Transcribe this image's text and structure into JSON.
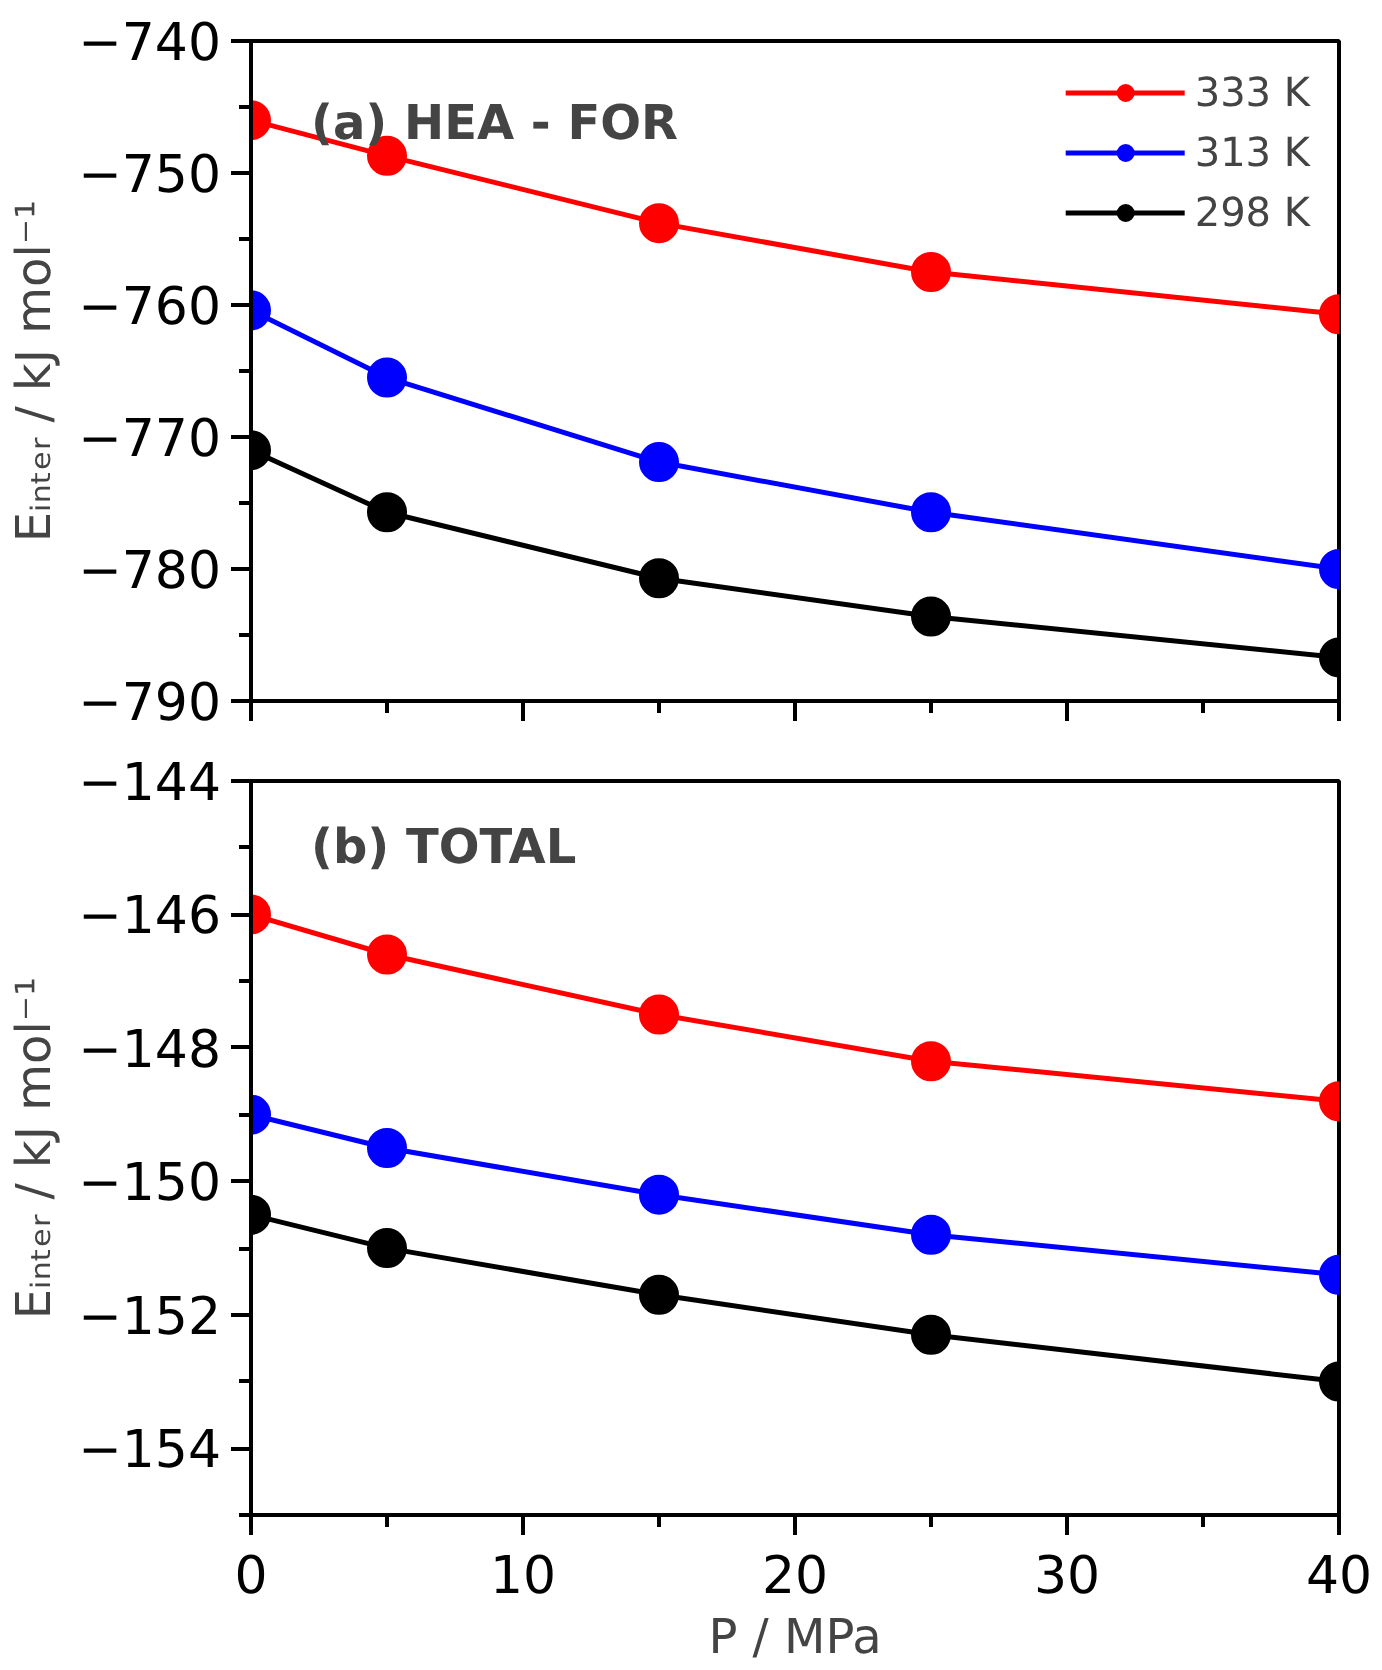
{
  "chart_data": [
    {
      "type": "line",
      "title": "(a) HEA - FOR",
      "ylabel": "Eᵢₙₜₑᵣ / kJ mol⁻¹",
      "x": [
        0,
        5,
        15,
        25,
        40
      ],
      "series": [
        {
          "name": "333 K",
          "color": "#ff0000",
          "values": [
            -746.0,
            -748.7,
            -753.8,
            -757.5,
            -760.7
          ]
        },
        {
          "name": "313 K",
          "color": "#0000ff",
          "values": [
            -760.4,
            -765.5,
            -771.9,
            -775.7,
            -780.0
          ]
        },
        {
          "name": "298 K",
          "color": "#000000",
          "values": [
            -771.0,
            -775.7,
            -780.7,
            -783.6,
            -786.7
          ]
        }
      ],
      "xlim": [
        0,
        40
      ],
      "xticks": [
        0,
        10,
        20,
        30,
        40
      ],
      "ylim": [
        -790,
        -740
      ],
      "yticks": [
        -790,
        -780,
        -770,
        -760,
        -750,
        -740
      ],
      "tick_labels": "y",
      "grid": false,
      "legend": "top right",
      "marker": "circle",
      "line_style": "solid"
    },
    {
      "type": "line",
      "title": "(b) TOTAL",
      "xlabel": "P / MPa",
      "ylabel": "Eᵢₙₜₑᵣ / kJ mol⁻¹",
      "x": [
        0,
        5,
        15,
        25,
        40
      ],
      "series": [
        {
          "color": "#ff0000",
          "values": [
            -146.0,
            -146.6,
            -147.5,
            -148.2,
            -148.8
          ]
        },
        {
          "color": "#0000ff",
          "values": [
            -149.0,
            -149.5,
            -150.2,
            -150.8,
            -151.4
          ]
        },
        {
          "color": "#000000",
          "values": [
            -150.5,
            -151.0,
            -151.7,
            -152.3,
            -153.0
          ]
        }
      ],
      "xlim": [
        0,
        40
      ],
      "xticks": [
        0,
        10,
        20,
        30,
        40
      ],
      "ylim": [
        -155,
        -144
      ],
      "yticks": [
        -154,
        -152,
        -150,
        -148,
        -146,
        -144
      ],
      "grid": false,
      "legend": false,
      "marker": "circle",
      "line_style": "solid"
    }
  ]
}
